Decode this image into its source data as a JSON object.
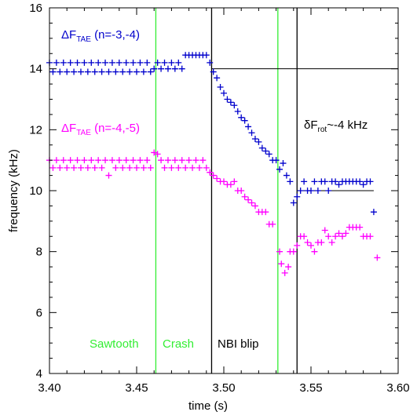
{
  "chart_data": {
    "type": "scatter",
    "xlabel": "time (s)",
    "ylabel": "frequency (kHz)",
    "xlim": [
      3.4,
      3.6
    ],
    "ylim": [
      4,
      16
    ],
    "xticks": [
      {
        "value": 3.4,
        "label": "3.40"
      },
      {
        "value": 3.45,
        "label": "3.45"
      },
      {
        "value": 3.5,
        "label": "3.50"
      },
      {
        "value": 3.55,
        "label": "3.55"
      },
      {
        "value": 3.6,
        "label": "3.60"
      }
    ],
    "yticks": [
      4,
      6,
      8,
      10,
      12,
      14,
      16
    ],
    "series": [
      {
        "name": "n=-3,-4",
        "color": "#0000cc",
        "x": [
          3.4,
          3.402,
          3.404,
          3.406,
          3.408,
          3.41,
          3.412,
          3.414,
          3.416,
          3.418,
          3.42,
          3.422,
          3.424,
          3.426,
          3.428,
          3.43,
          3.432,
          3.434,
          3.436,
          3.438,
          3.44,
          3.442,
          3.444,
          3.446,
          3.448,
          3.45,
          3.452,
          3.454,
          3.456,
          3.458,
          3.46,
          3.462,
          3.464,
          3.466,
          3.468,
          3.47,
          3.472,
          3.474,
          3.476,
          3.478,
          3.48,
          3.482,
          3.484,
          3.486,
          3.488,
          3.49,
          3.492,
          3.494,
          3.496,
          3.498,
          3.5,
          3.502,
          3.504,
          3.506,
          3.508,
          3.51,
          3.512,
          3.514,
          3.516,
          3.518,
          3.52,
          3.522,
          3.524,
          3.526,
          3.528,
          3.53,
          3.532,
          3.534,
          3.536,
          3.538,
          3.54,
          3.542,
          3.544,
          3.546,
          3.548,
          3.55,
          3.552,
          3.554,
          3.556,
          3.558,
          3.56,
          3.562,
          3.564,
          3.566,
          3.568,
          3.57,
          3.572,
          3.574,
          3.576,
          3.578,
          3.58,
          3.582,
          3.584,
          3.586
        ],
        "y": [
          14.2,
          13.9,
          14.2,
          13.9,
          14.2,
          13.9,
          14.2,
          13.9,
          14.2,
          13.9,
          14.2,
          13.9,
          14.2,
          13.9,
          14.2,
          13.9,
          14.2,
          13.9,
          14.2,
          13.9,
          14.2,
          13.9,
          14.2,
          13.9,
          14.2,
          13.9,
          14.2,
          13.9,
          14.2,
          13.9,
          14.0,
          14.2,
          14.0,
          14.2,
          14.0,
          14.2,
          14.0,
          14.2,
          14.0,
          14.45,
          14.45,
          14.45,
          14.45,
          14.45,
          14.45,
          14.45,
          14.2,
          13.9,
          13.7,
          13.4,
          13.2,
          13.0,
          12.9,
          12.8,
          12.6,
          12.4,
          12.3,
          12.1,
          11.9,
          11.7,
          11.6,
          11.4,
          11.3,
          11.2,
          11.0,
          11.0,
          10.7,
          10.9,
          10.5,
          10.3,
          9.6,
          9.8,
          10.0,
          10.3,
          10.0,
          10.0,
          10.3,
          10.0,
          10.3,
          10.3,
          10.0,
          10.3,
          10.3,
          10.2,
          10.3,
          10.3,
          10.3,
          10.3,
          10.3,
          10.3,
          10.2,
          10.3,
          10.3,
          9.3
        ]
      },
      {
        "name": "n=-4,-5",
        "color": "#ff00ff",
        "x": [
          3.4,
          3.402,
          3.404,
          3.406,
          3.408,
          3.41,
          3.412,
          3.414,
          3.416,
          3.418,
          3.42,
          3.422,
          3.424,
          3.426,
          3.428,
          3.43,
          3.432,
          3.434,
          3.436,
          3.438,
          3.44,
          3.442,
          3.444,
          3.446,
          3.448,
          3.45,
          3.452,
          3.454,
          3.456,
          3.458,
          3.46,
          3.462,
          3.464,
          3.466,
          3.468,
          3.47,
          3.472,
          3.474,
          3.476,
          3.478,
          3.48,
          3.482,
          3.484,
          3.486,
          3.488,
          3.49,
          3.492,
          3.494,
          3.496,
          3.498,
          3.5,
          3.502,
          3.504,
          3.506,
          3.508,
          3.51,
          3.512,
          3.514,
          3.516,
          3.518,
          3.52,
          3.522,
          3.524,
          3.526,
          3.528,
          3.532,
          3.533,
          3.535,
          3.537,
          3.538,
          3.54,
          3.542,
          3.544,
          3.546,
          3.548,
          3.55,
          3.552,
          3.554,
          3.556,
          3.558,
          3.56,
          3.562,
          3.564,
          3.566,
          3.568,
          3.57,
          3.572,
          3.574,
          3.576,
          3.578,
          3.58,
          3.582,
          3.584,
          3.588
        ],
        "y": [
          11.0,
          10.75,
          11.0,
          10.75,
          11.0,
          10.75,
          11.0,
          10.75,
          11.0,
          10.75,
          11.0,
          10.75,
          11.0,
          10.75,
          11.0,
          10.75,
          11.0,
          10.5,
          11.0,
          10.75,
          11.0,
          10.75,
          11.0,
          10.75,
          11.0,
          10.75,
          11.0,
          10.75,
          11.0,
          10.75,
          11.25,
          11.2,
          11.0,
          10.75,
          11.0,
          10.75,
          11.0,
          10.75,
          11.0,
          10.75,
          11.0,
          10.75,
          11.0,
          10.75,
          11.0,
          10.75,
          10.6,
          10.5,
          10.4,
          10.3,
          10.3,
          10.2,
          10.2,
          10.3,
          10.0,
          10.0,
          9.8,
          9.7,
          9.6,
          9.5,
          9.3,
          9.3,
          9.3,
          8.9,
          8.9,
          8.0,
          7.6,
          7.3,
          7.5,
          8.0,
          8.0,
          8.2,
          8.5,
          8.5,
          8.3,
          8.2,
          8.0,
          8.3,
          8.3,
          8.7,
          8.5,
          8.3,
          8.5,
          8.6,
          8.5,
          8.6,
          8.8,
          8.8,
          8.8,
          8.8,
          8.5,
          8.5,
          8.5,
          7.8
        ]
      }
    ],
    "vlines": [
      {
        "x": 3.461,
        "color": "#33ee33"
      },
      {
        "x": 3.493,
        "color": "#000000"
      },
      {
        "x": 3.531,
        "color": "#33ee33"
      },
      {
        "x": 3.542,
        "color": "#000000"
      }
    ],
    "hlines": [
      {
        "y": 14,
        "x": [
          3.493,
          3.6
        ]
      },
      {
        "y": 10,
        "x": [
          3.542,
          3.586
        ]
      }
    ],
    "annotations": {
      "blue_label": {
        "delta": "ΔF",
        "sub": "TAE",
        "rest": " (n=-3,-4)"
      },
      "magenta_label": {
        "delta": "ΔF",
        "sub": "TAE",
        "rest": " (n=-4,-5)"
      },
      "rot_label": {
        "delta": "δF",
        "sub": "rot",
        "rest": "~-4 kHz"
      },
      "sawtooth": "Sawtooth",
      "crash": "Crash",
      "nbi": "NBI blip"
    }
  }
}
